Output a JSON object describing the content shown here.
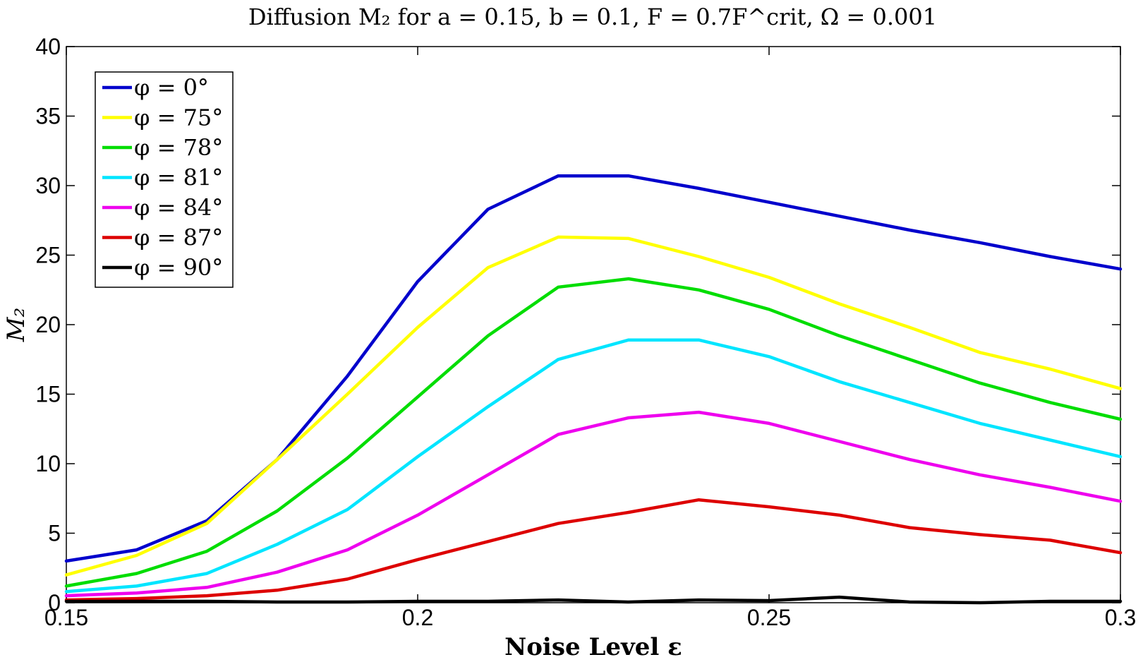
{
  "chart_data": {
    "type": "line",
    "title": "Diffusion M₂ for a = 0.15, b = 0.1, F = 0.7F^crit, Ω = 0.001",
    "xlabel": "Noise Level ε",
    "ylabel": "M₂",
    "xlim": [
      0.15,
      0.3
    ],
    "ylim": [
      0,
      40
    ],
    "xticks": [
      0.15,
      0.2,
      0.25,
      0.3
    ],
    "xtick_labels": [
      "0.15",
      "0.2",
      "0.25",
      "0.3"
    ],
    "yticks": [
      0,
      5,
      10,
      15,
      20,
      25,
      30,
      35,
      40
    ],
    "ytick_labels": [
      "0",
      "5",
      "10",
      "15",
      "20",
      "25",
      "30",
      "35",
      "40"
    ],
    "grid": false,
    "legend_position": "top-left",
    "x": [
      0.15,
      0.16,
      0.17,
      0.18,
      0.19,
      0.2,
      0.21,
      0.22,
      0.23,
      0.24,
      0.25,
      0.26,
      0.27,
      0.28,
      0.29,
      0.3
    ],
    "series": [
      {
        "name": "φ = 0°",
        "color": "#0000cc",
        "values": [
          3.0,
          3.8,
          5.9,
          10.3,
          16.3,
          23.1,
          28.3,
          30.7,
          30.7,
          29.8,
          28.8,
          27.8,
          26.8,
          25.9,
          24.9,
          24.0
        ]
      },
      {
        "name": "φ = 75°",
        "color": "#ffff00",
        "values": [
          2.0,
          3.4,
          5.7,
          10.3,
          15.0,
          19.8,
          24.1,
          26.3,
          26.2,
          24.9,
          23.4,
          21.5,
          19.8,
          18.0,
          16.8,
          15.4
        ]
      },
      {
        "name": "φ = 78°",
        "color": "#00dd00",
        "values": [
          1.2,
          2.1,
          3.7,
          6.6,
          10.4,
          14.8,
          19.2,
          22.7,
          23.3,
          22.5,
          21.1,
          19.2,
          17.5,
          15.8,
          14.4,
          13.2
        ]
      },
      {
        "name": "φ = 81°",
        "color": "#00e5ff",
        "values": [
          0.8,
          1.2,
          2.1,
          4.2,
          6.7,
          10.5,
          14.1,
          17.5,
          18.9,
          18.9,
          17.7,
          15.9,
          14.4,
          12.9,
          11.7,
          10.5
        ]
      },
      {
        "name": "φ = 84°",
        "color": "#ee00ee",
        "values": [
          0.5,
          0.7,
          1.1,
          2.2,
          3.8,
          6.3,
          9.2,
          12.1,
          13.3,
          13.7,
          12.9,
          11.6,
          10.3,
          9.2,
          8.3,
          7.3
        ]
      },
      {
        "name": "φ = 87°",
        "color": "#dd0000",
        "values": [
          0.2,
          0.3,
          0.5,
          0.9,
          1.7,
          3.1,
          4.4,
          5.7,
          6.5,
          7.4,
          6.9,
          6.3,
          5.4,
          4.9,
          4.5,
          3.6
        ]
      },
      {
        "name": "φ = 90°",
        "color": "#000000",
        "values": [
          0.1,
          0.1,
          0.1,
          0.05,
          0.05,
          0.1,
          0.1,
          0.2,
          0.05,
          0.2,
          0.15,
          0.4,
          0.05,
          0.0,
          0.1,
          0.1
        ]
      }
    ]
  }
}
